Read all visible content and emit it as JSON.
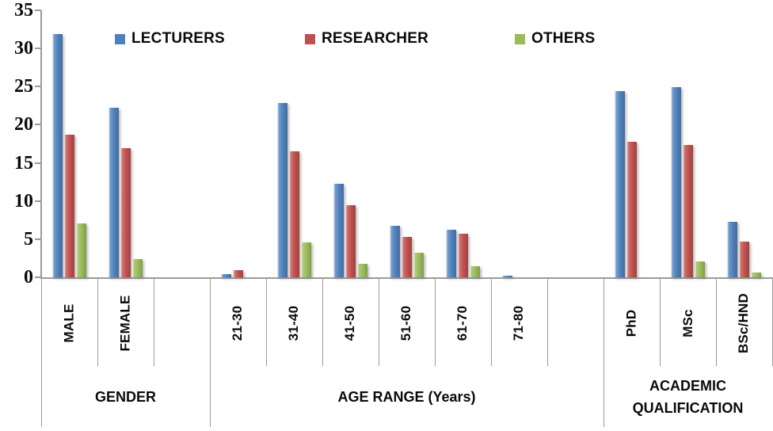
{
  "chart_data": {
    "type": "bar",
    "title": "",
    "xlabel": "",
    "ylabel": "",
    "ylim": [
      0,
      35
    ],
    "yticks": [
      0,
      5,
      10,
      15,
      20,
      25,
      30,
      35
    ],
    "grid": false,
    "legend_position": "top",
    "axis_color": "#9b9b9b",
    "categories": [
      "MALE",
      "FEMALE",
      "",
      "21-30",
      "31-40",
      "41-50",
      "51-60",
      "61-70",
      "71-80",
      "",
      "PhD",
      "MSc",
      "BSc/HND"
    ],
    "groups": [
      {
        "label": "GENDER",
        "start": 0,
        "end": 2
      },
      {
        "label": "AGE RANGE (Years)",
        "start": 3,
        "end": 9
      },
      {
        "label": "ACADEMIC QUALIFICATION",
        "start": 10,
        "end": 12
      }
    ],
    "series": [
      {
        "name": "LECTURERS",
        "color": "#4F81BD",
        "values": [
          31.9,
          22.2,
          null,
          0.4,
          22.9,
          12.3,
          6.7,
          6.2,
          0.2,
          null,
          24.4,
          24.9,
          7.3
        ]
      },
      {
        "name": "RESEARCHER",
        "color": "#C0504D",
        "values": [
          18.7,
          16.9,
          null,
          0.9,
          16.5,
          9.5,
          5.3,
          5.7,
          null,
          null,
          17.8,
          17.3,
          4.7
        ]
      },
      {
        "name": "OTHERS",
        "color": "#9BBB59",
        "values": [
          7.1,
          2.4,
          null,
          null,
          4.6,
          1.8,
          3.2,
          1.5,
          null,
          null,
          null,
          2.1,
          0.6
        ]
      }
    ]
  }
}
